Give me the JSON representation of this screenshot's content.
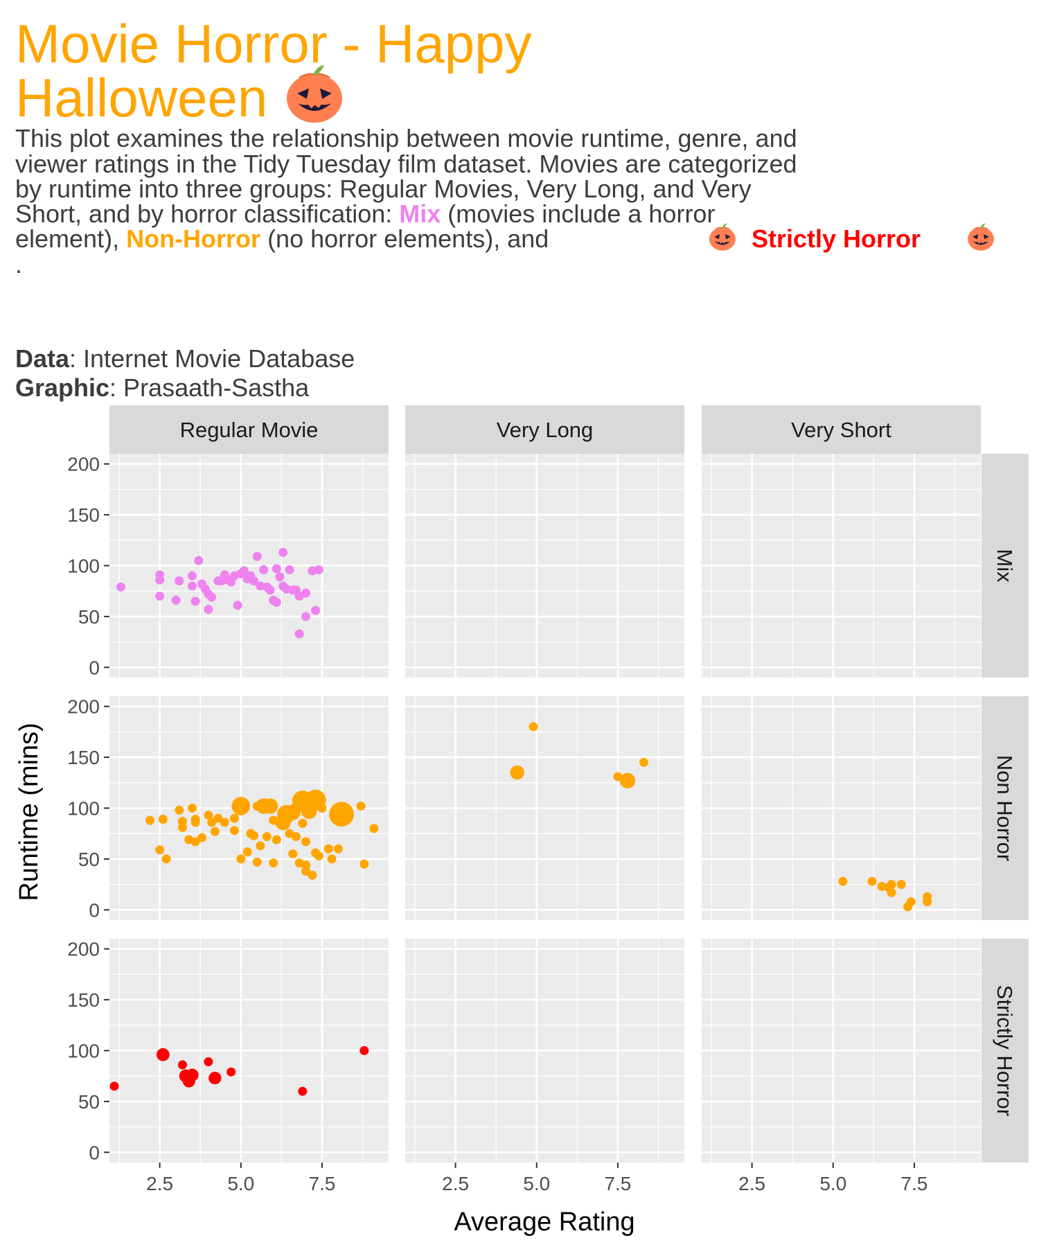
{
  "title": {
    "line1": "Movie Horror - Happy",
    "line2": "Halloween",
    "color": "#FFA500"
  },
  "subtitle": {
    "lines": [
      "This plot examines the relationship between movie runtime, genre, and",
      "viewer ratings in the Tidy Tuesday film dataset. Movies are categorized",
      "by runtime into three groups: Regular Movies, Very Long, and Very",
      "Short, and by horror classification:"
    ],
    "mix_word": "Mix",
    "mix_desc": "(movies include a horror",
    "line5_start": "element),",
    "nonhorror_word": "Non-Horror",
    "nonhorror_desc": "(no horror elements), and",
    "strict_word": "Strictly Horror",
    "period": ".",
    "text_color": "#3C3C3C",
    "mix_color": "#EE82EE",
    "nonhorror_color": "#FFA500",
    "strict_color": "#FF0000"
  },
  "caption": {
    "data_label": "Data",
    "data_value": ": Internet Movie Database",
    "graphic_label": "Graphic",
    "graphic_value": ": Prasaath-Sastha"
  },
  "icons": [
    "pumpkin-icon"
  ],
  "chart_data": {
    "type": "scatter",
    "xlabel": "Average Rating",
    "ylabel": "Runtime (mins)",
    "xticks": [
      2.5,
      5.0,
      7.5
    ],
    "yticks": [
      0,
      50,
      100,
      150,
      200
    ],
    "xlim": [
      0.95,
      9.55
    ],
    "ylim": [
      -10,
      210
    ],
    "grid": true,
    "panel_background": "#EBEBEB",
    "strip_background": "#D9D9D9",
    "columns": [
      "Regular Movie",
      "Very Long",
      "Very Short"
    ],
    "rows": [
      "Mix",
      "Non Horror",
      "Strictly Horror"
    ],
    "size_encoding": "larger points = more votes (no legend shown)",
    "series": [
      {
        "row": "Mix",
        "column": "Regular Movie",
        "color": "#EE82EE",
        "points": [
          [
            1.3,
            79,
            1
          ],
          [
            2.5,
            91,
            1
          ],
          [
            2.5,
            86,
            1
          ],
          [
            2.5,
            70,
            1
          ],
          [
            3.0,
            66,
            1
          ],
          [
            3.1,
            85,
            1
          ],
          [
            3.5,
            90,
            1
          ],
          [
            3.5,
            80,
            1
          ],
          [
            3.6,
            65,
            1
          ],
          [
            3.7,
            105,
            1
          ],
          [
            3.8,
            82,
            1
          ],
          [
            3.9,
            77,
            1
          ],
          [
            4.0,
            72,
            1
          ],
          [
            4.0,
            57,
            1
          ],
          [
            4.1,
            69,
            1
          ],
          [
            4.3,
            85,
            1
          ],
          [
            4.4,
            85,
            1
          ],
          [
            4.5,
            91,
            1
          ],
          [
            4.6,
            86,
            1
          ],
          [
            4.7,
            84,
            1
          ],
          [
            4.8,
            90,
            1
          ],
          [
            4.9,
            61,
            1
          ],
          [
            5.0,
            92,
            1
          ],
          [
            5.1,
            95,
            1
          ],
          [
            5.2,
            87,
            1
          ],
          [
            5.3,
            90,
            1
          ],
          [
            5.4,
            85,
            1
          ],
          [
            5.5,
            109,
            1
          ],
          [
            5.6,
            80,
            1
          ],
          [
            5.7,
            96,
            1
          ],
          [
            5.8,
            79,
            1
          ],
          [
            5.9,
            76,
            1
          ],
          [
            6.0,
            66,
            1
          ],
          [
            6.1,
            97,
            1
          ],
          [
            6.1,
            64,
            1
          ],
          [
            6.2,
            89,
            1
          ],
          [
            6.3,
            113,
            1
          ],
          [
            6.3,
            80,
            1
          ],
          [
            6.4,
            77,
            1
          ],
          [
            6.5,
            96,
            1
          ],
          [
            6.6,
            76,
            1
          ],
          [
            6.7,
            76,
            1
          ],
          [
            6.8,
            33,
            1
          ],
          [
            6.8,
            70,
            1
          ],
          [
            7.0,
            73,
            1
          ],
          [
            7.0,
            50,
            1
          ],
          [
            7.2,
            95,
            1
          ],
          [
            7.3,
            56,
            1
          ],
          [
            7.4,
            96,
            1
          ]
        ]
      },
      {
        "row": "Non Horror",
        "column": "Regular Movie",
        "color": "#FFA500",
        "points": [
          [
            2.2,
            88,
            1
          ],
          [
            2.5,
            59,
            1
          ],
          [
            2.6,
            89,
            1
          ],
          [
            2.7,
            50,
            1
          ],
          [
            3.1,
            98,
            1
          ],
          [
            3.2,
            87,
            1
          ],
          [
            3.2,
            81,
            1
          ],
          [
            3.4,
            69,
            1
          ],
          [
            3.5,
            100,
            1
          ],
          [
            3.6,
            89,
            1
          ],
          [
            3.6,
            86,
            1
          ],
          [
            3.6,
            67,
            1
          ],
          [
            3.8,
            71,
            1
          ],
          [
            4.0,
            93,
            1
          ],
          [
            4.1,
            86,
            1
          ],
          [
            4.2,
            77,
            1
          ],
          [
            4.3,
            90,
            1
          ],
          [
            4.5,
            86,
            1
          ],
          [
            4.8,
            90,
            1
          ],
          [
            4.8,
            78,
            1
          ],
          [
            5.0,
            50,
            1
          ],
          [
            5.0,
            102,
            3
          ],
          [
            5.2,
            57,
            1
          ],
          [
            5.3,
            75,
            1
          ],
          [
            5.4,
            73,
            1
          ],
          [
            5.5,
            102,
            1
          ],
          [
            5.5,
            47,
            1
          ],
          [
            5.6,
            63,
            1
          ],
          [
            5.7,
            102,
            2
          ],
          [
            5.8,
            72,
            1
          ],
          [
            5.9,
            102,
            2
          ],
          [
            6.0,
            88,
            1
          ],
          [
            6.0,
            46,
            1
          ],
          [
            6.1,
            69,
            1
          ],
          [
            6.3,
            86,
            2
          ],
          [
            6.4,
            94,
            3
          ],
          [
            6.5,
            75,
            1
          ],
          [
            6.6,
            96,
            2
          ],
          [
            6.6,
            55,
            1
          ],
          [
            6.7,
            72,
            1
          ],
          [
            6.8,
            46,
            1
          ],
          [
            6.9,
            107,
            4
          ],
          [
            6.9,
            85,
            1
          ],
          [
            7.0,
            67,
            1
          ],
          [
            7.0,
            44,
            1
          ],
          [
            7.0,
            38,
            1
          ],
          [
            7.1,
            97,
            2
          ],
          [
            7.2,
            34,
            1
          ],
          [
            7.3,
            108,
            4
          ],
          [
            7.3,
            56,
            1
          ],
          [
            7.4,
            53,
            1
          ],
          [
            7.5,
            100,
            1
          ],
          [
            7.7,
            60,
            1
          ],
          [
            7.8,
            50,
            1
          ],
          [
            8.0,
            60,
            1
          ],
          [
            8.1,
            94,
            6
          ],
          [
            8.7,
            102,
            1
          ],
          [
            8.8,
            45,
            1
          ],
          [
            9.1,
            80,
            1
          ]
        ]
      },
      {
        "row": "Non Horror",
        "column": "Very Long",
        "color": "#FFA500",
        "points": [
          [
            4.4,
            135,
            1.6
          ],
          [
            4.9,
            180,
            1
          ],
          [
            7.5,
            131,
            1
          ],
          [
            7.8,
            127,
            2
          ],
          [
            8.3,
            145,
            1
          ]
        ]
      },
      {
        "row": "Non Horror",
        "column": "Very Short",
        "color": "#FFA500",
        "points": [
          [
            5.3,
            28,
            1
          ],
          [
            6.2,
            28,
            1
          ],
          [
            6.5,
            23,
            1
          ],
          [
            6.7,
            22,
            1
          ],
          [
            6.8,
            17,
            1
          ],
          [
            6.8,
            25,
            1
          ],
          [
            7.1,
            25,
            1
          ],
          [
            7.3,
            3,
            1
          ],
          [
            7.4,
            8,
            1
          ],
          [
            7.9,
            13,
            1
          ],
          [
            7.9,
            8,
            1
          ]
        ]
      },
      {
        "row": "Strictly Horror",
        "column": "Regular Movie",
        "color": "#FF0000",
        "points": [
          [
            1.1,
            65,
            1
          ],
          [
            2.6,
            96,
            1.3
          ],
          [
            3.2,
            86,
            1
          ],
          [
            3.3,
            75,
            1.3
          ],
          [
            3.4,
            70,
            1.2
          ],
          [
            3.5,
            76,
            1.2
          ],
          [
            4.0,
            89,
            1
          ],
          [
            4.2,
            73,
            1.2
          ],
          [
            4.7,
            79,
            1
          ],
          [
            6.9,
            60,
            1
          ],
          [
            8.8,
            100,
            1
          ]
        ]
      }
    ]
  }
}
